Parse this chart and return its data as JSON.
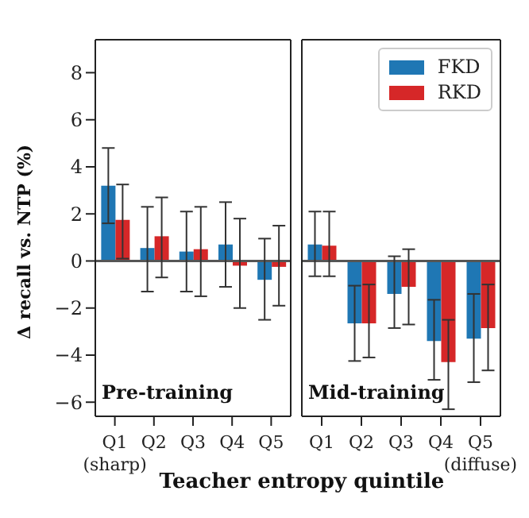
{
  "chart_data": [
    {
      "type": "bar",
      "categories": [
        "Q1\n(sharp)",
        "Q2",
        "Q3",
        "Q4",
        "Q5"
      ],
      "ylabel": "Δ recall vs. NTP (%)",
      "xlabel": "Teacher entropy quintile",
      "annotations": [
        "Pre-training"
      ],
      "ylim": [
        -6.6,
        9.4
      ],
      "yticks": [
        {
          "value": -6,
          "label": "−6"
        },
        {
          "value": -4,
          "label": "−4"
        },
        {
          "value": -2,
          "label": "−2"
        },
        0,
        2,
        4,
        6,
        8
      ],
      "ref_lines": [
        {
          "axis": "y",
          "value": 0,
          "color": "#555555"
        }
      ],
      "legend": false,
      "series": [
        {
          "color": "#1f77b4",
          "values": [
            3.2,
            0.55,
            0.4,
            0.7,
            -0.8
          ],
          "errors": [
            [
              1.6,
              4.8
            ],
            [
              -1.3,
              2.3
            ],
            [
              -1.3,
              2.1
            ],
            [
              -1.1,
              2.5
            ],
            [
              -2.5,
              0.95
            ]
          ]
        },
        {
          "color": "#d62728",
          "values": [
            1.75,
            1.05,
            0.5,
            -0.2,
            -0.25
          ],
          "errors": [
            [
              0.1,
              3.25
            ],
            [
              -0.7,
              2.7
            ],
            [
              -1.5,
              2.3
            ],
            [
              -2.0,
              1.8
            ],
            [
              -1.9,
              1.5
            ]
          ]
        }
      ]
    },
    {
      "type": "bar",
      "categories": [
        "Q1",
        "Q2",
        "Q3",
        "Q4",
        "Q5\n(diffuse)"
      ],
      "annotations": [
        "Mid-training"
      ],
      "ylim": [
        -6.6,
        9.4
      ],
      "tick_labels": "x",
      "ref_lines": [
        {
          "axis": "y",
          "value": 0,
          "color": "#555555"
        }
      ],
      "legend": "top right",
      "series": [
        {
          "name": "FKD",
          "color": "#1f77b4",
          "values": [
            0.7,
            -2.65,
            -1.4,
            -3.4,
            -3.3
          ],
          "errors": [
            [
              -0.65,
              2.1
            ],
            [
              -4.25,
              -1.05
            ],
            [
              -2.85,
              0.2
            ],
            [
              -5.05,
              -1.65
            ],
            [
              -5.15,
              -1.4
            ]
          ]
        },
        {
          "name": "RKD",
          "color": "#d62728",
          "values": [
            0.65,
            -2.65,
            -1.1,
            -4.3,
            -2.85
          ],
          "errors": [
            [
              -0.65,
              2.1
            ],
            [
              -4.1,
              -1.0
            ],
            [
              -2.7,
              0.5
            ],
            [
              -6.3,
              -2.5
            ],
            [
              -4.65,
              -1.0
            ]
          ]
        }
      ]
    }
  ]
}
